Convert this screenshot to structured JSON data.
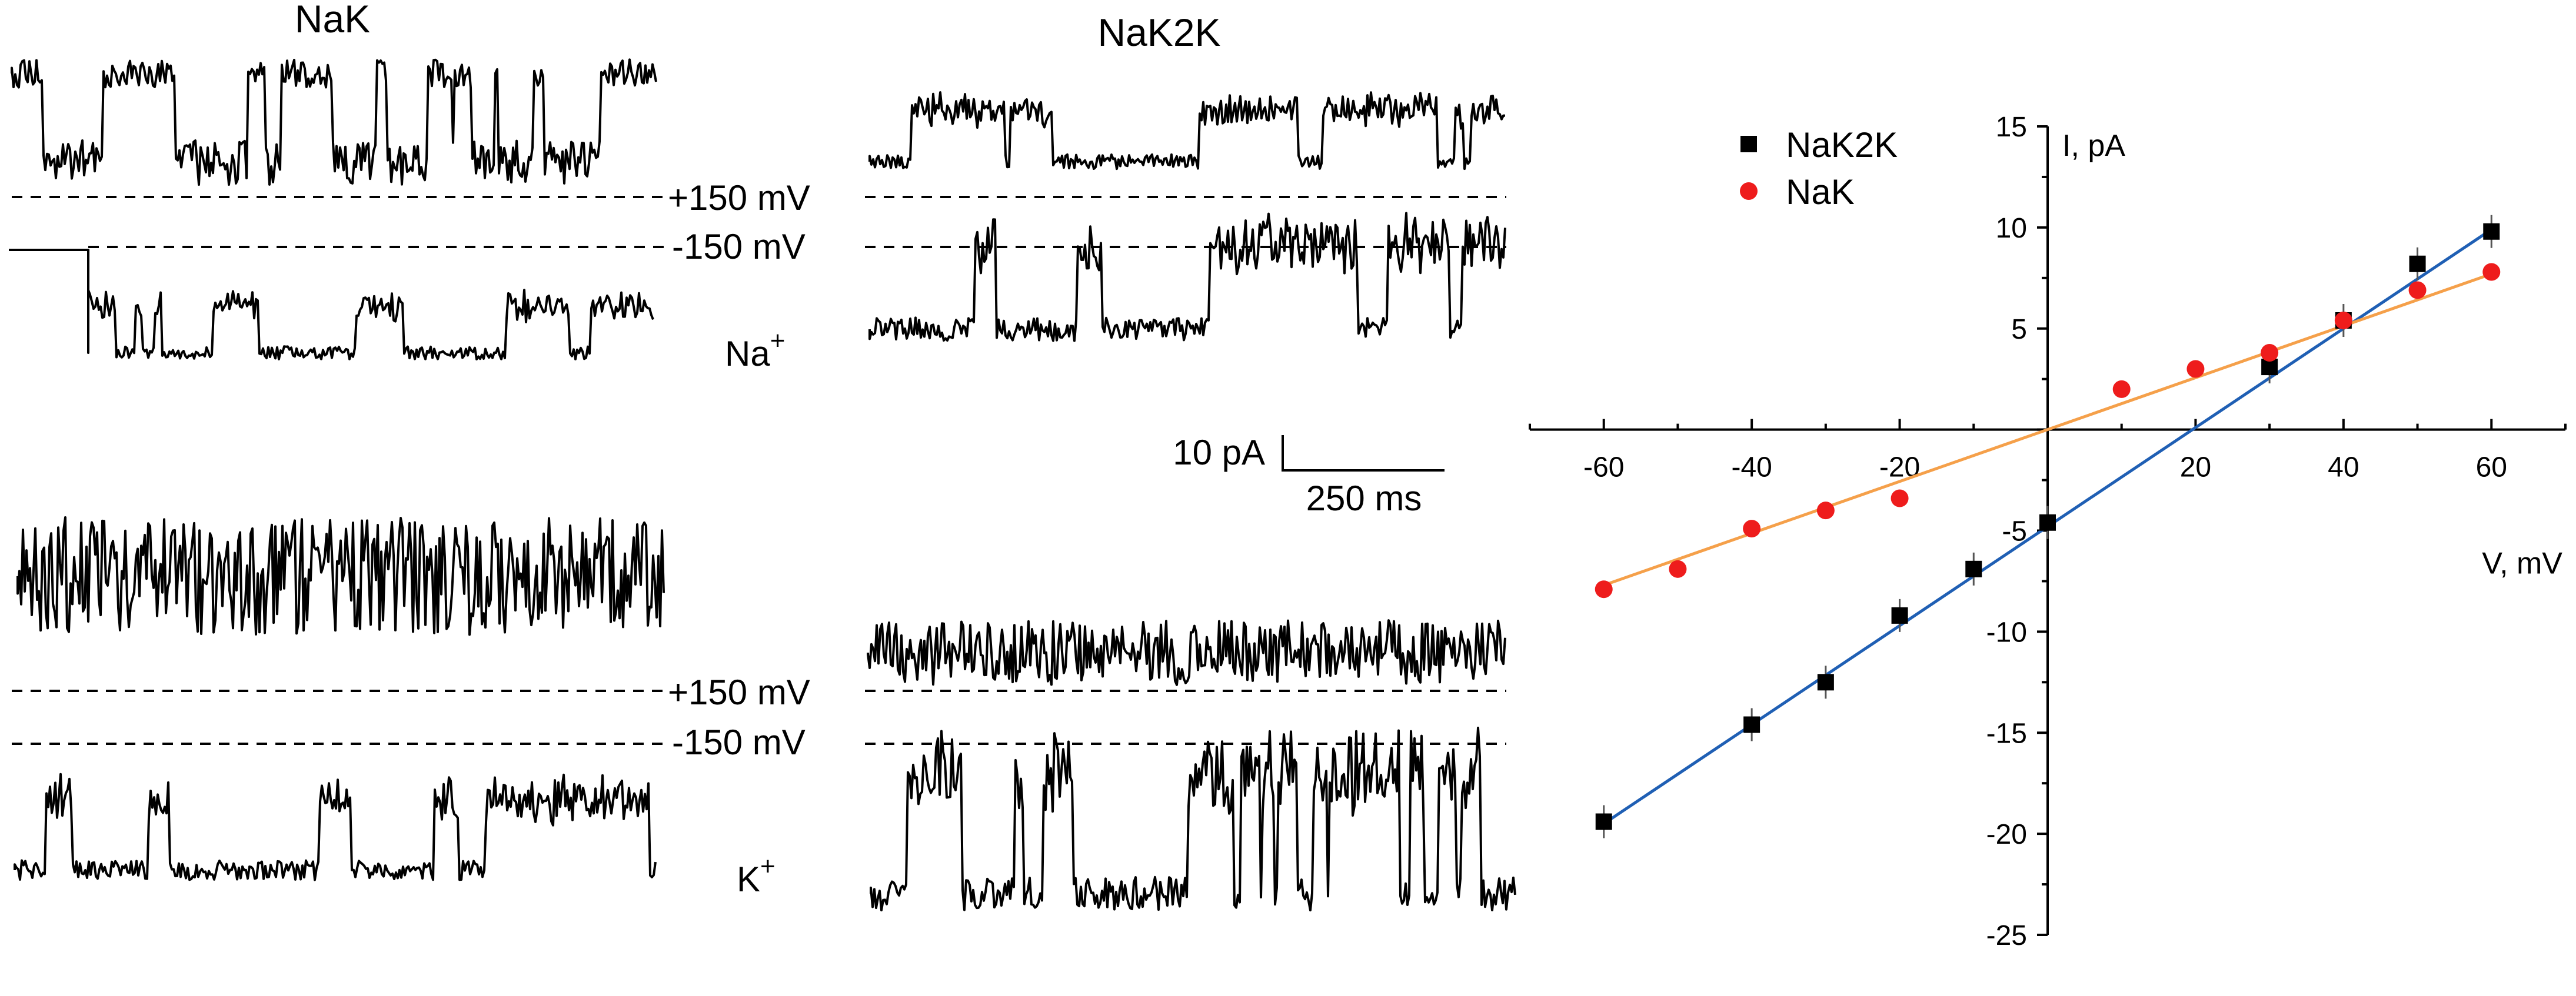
{
  "traces": {
    "left_title": "NaK",
    "right_title": "NaK2K",
    "v_pos": "+150 mV",
    "v_neg": "-150 mV",
    "v_pos_k": "+150 mV",
    "v_neg_k": "-150 mV",
    "ion_na": "Na",
    "ion_na_sup": "+",
    "ion_k": "K",
    "ion_k_sup": "+",
    "scale_current": "10 pA",
    "scale_time": "250 ms"
  },
  "chart_data": {
    "type": "scatter",
    "title": "",
    "xlabel": "V, mV",
    "ylabel": "I, pA",
    "xlim": [
      -70,
      70
    ],
    "ylim": [
      -25,
      15
    ],
    "x_ticks": [
      -60,
      -40,
      -20,
      20,
      40,
      60
    ],
    "x_tick_labels": [
      "-60",
      "-40",
      "-20",
      "20",
      "40",
      "60"
    ],
    "y_ticks": [
      15,
      10,
      5,
      -5,
      -10,
      -15,
      -20,
      -25
    ],
    "y_tick_labels": [
      "15",
      "10",
      "5",
      "-5",
      "-10",
      "-15",
      "-20",
      "-25"
    ],
    "legend": "top-left",
    "series": [
      {
        "name": "NaK2K",
        "marker": "square",
        "color": "#000000",
        "fit_color": "#1f5fb4",
        "x": [
          -60,
          -40,
          -30,
          -20,
          -10,
          0,
          30,
          40,
          50,
          60
        ],
        "y": [
          -19.4,
          -14.6,
          -12.5,
          -9.2,
          -6.9,
          -4.6,
          3.1,
          5.4,
          8.2,
          9.8
        ],
        "fit": [
          [
            -60,
            -19.5
          ],
          [
            60,
            9.9
          ]
        ]
      },
      {
        "name": "NaK",
        "marker": "circle",
        "color": "#ee1c1c",
        "fit_color": "#f5a04a",
        "x": [
          -60,
          -50,
          -40,
          -30,
          -20,
          10,
          20,
          30,
          40,
          50,
          60
        ],
        "y": [
          -7.9,
          -6.9,
          -4.9,
          -4.0,
          -3.4,
          2.0,
          3.0,
          3.8,
          5.4,
          6.9,
          7.8
        ],
        "fit": [
          [
            -60,
            -7.7
          ],
          [
            60,
            7.7
          ]
        ]
      }
    ]
  }
}
